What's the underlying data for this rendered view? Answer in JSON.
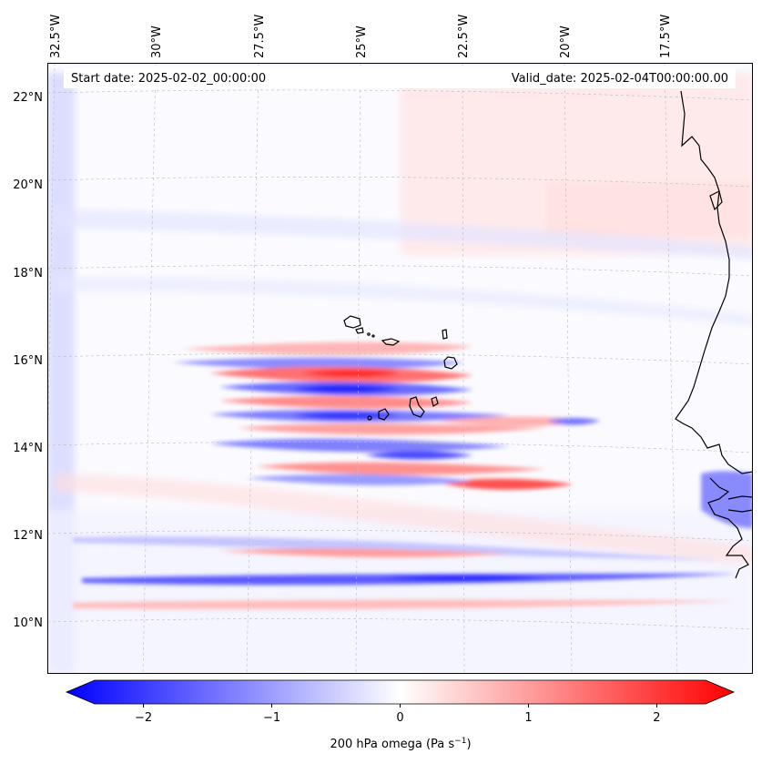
{
  "header": {
    "start_date": "Start date: 2025-02-02_00:00:00",
    "valid_date": "Valid_date: 2025-02-04T00:00:00.00"
  },
  "lon_labels": [
    "32.5°W",
    "30°W",
    "27.5°W",
    "25°W",
    "22.5°W",
    "20°W",
    "17.5°W"
  ],
  "lat_labels": [
    "22°N",
    "20°N",
    "18°N",
    "16°N",
    "14°N",
    "12°N",
    "10°N"
  ],
  "colorbar": {
    "label": "200 hPa omega (Pa s",
    "label_sup": "−1",
    "label_close": ")",
    "range": [
      -2.6,
      2.6
    ],
    "ticks": [
      {
        "value": -2,
        "text": "−2"
      },
      {
        "value": -1,
        "text": "−1"
      },
      {
        "value": 0,
        "text": "0"
      },
      {
        "value": 1,
        "text": "1"
      },
      {
        "value": 2,
        "text": "2"
      }
    ],
    "colors": {
      "negative": "#0000ff",
      "zero": "#ffffff",
      "positive": "#ff0000"
    }
  },
  "map": {
    "variable": "200 hPa omega",
    "units": "Pa s-1",
    "region": "Cape Verde / West Africa, approx. 8.5N-23N, 34W-15W",
    "colors": {
      "coastline": "#000000",
      "gridline": "#bbbbbb"
    }
  }
}
